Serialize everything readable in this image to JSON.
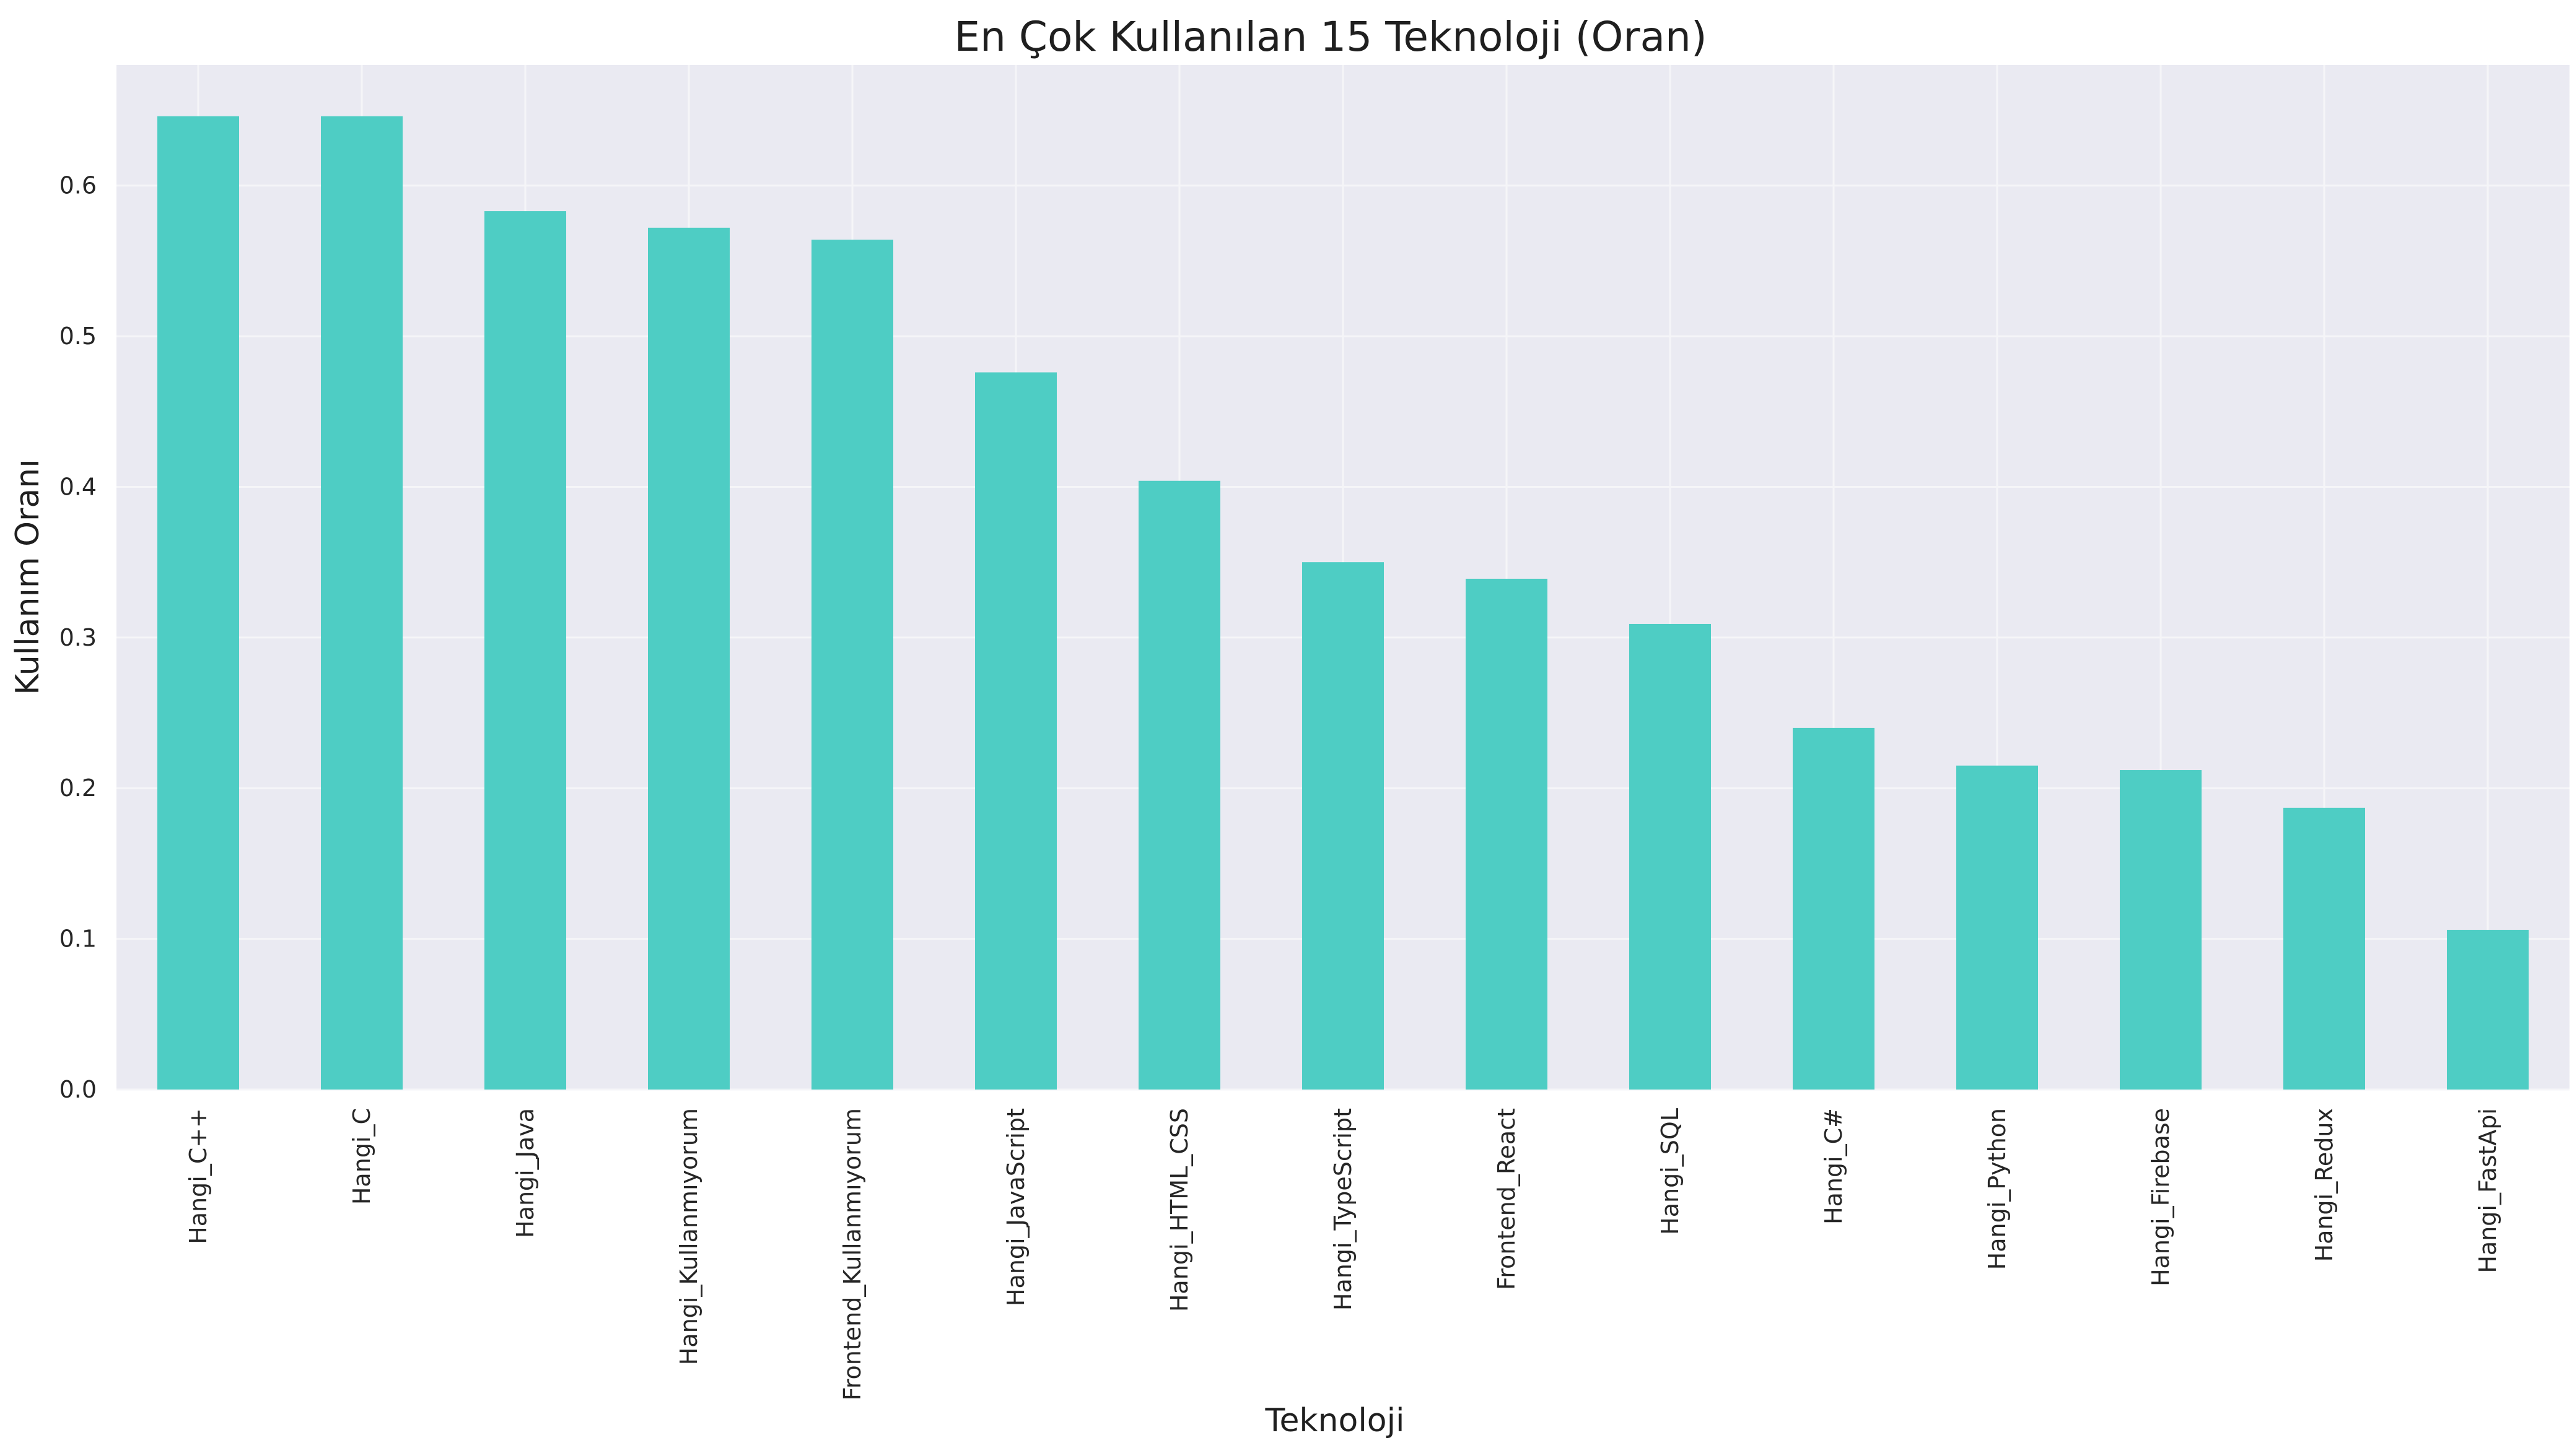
{
  "chart_data": {
    "type": "bar",
    "title": "En Çok Kullanılan 15 Teknoloji (Oran)",
    "xlabel": "Teknoloji",
    "ylabel": "Kullanım Oranı",
    "categories": [
      "Hangi_C++",
      "Hangi_C",
      "Hangi_Java",
      "Hangi_Kullanmıyorum",
      "Frontend_Kullanmıyorum",
      "Hangi_JavaScript",
      "Hangi_HTML_CSS",
      "Hangi_TypeScript",
      "Frontend_React",
      "Hangi_SQL",
      "Hangi_C#",
      "Hangi_Python",
      "Hangi_Firebase",
      "Hangi_Redux",
      "Hangi_FastApi"
    ],
    "values": [
      0.646,
      0.646,
      0.583,
      0.572,
      0.564,
      0.476,
      0.404,
      0.35,
      0.339,
      0.309,
      0.24,
      0.215,
      0.212,
      0.187,
      0.106
    ],
    "ylim": [
      0,
      0.68
    ],
    "yticks": [
      0.0,
      0.1,
      0.2,
      0.3,
      0.4,
      0.5,
      0.6
    ],
    "ytick_labels": [
      "0.0",
      "0.1",
      "0.2",
      "0.3",
      "0.4",
      "0.5",
      "0.6"
    ],
    "grid": true,
    "legend": "none",
    "colors": {
      "bar": "#4ecdc4",
      "plot_background": "#eaeaf2",
      "grid": "#f5f5f8"
    }
  }
}
